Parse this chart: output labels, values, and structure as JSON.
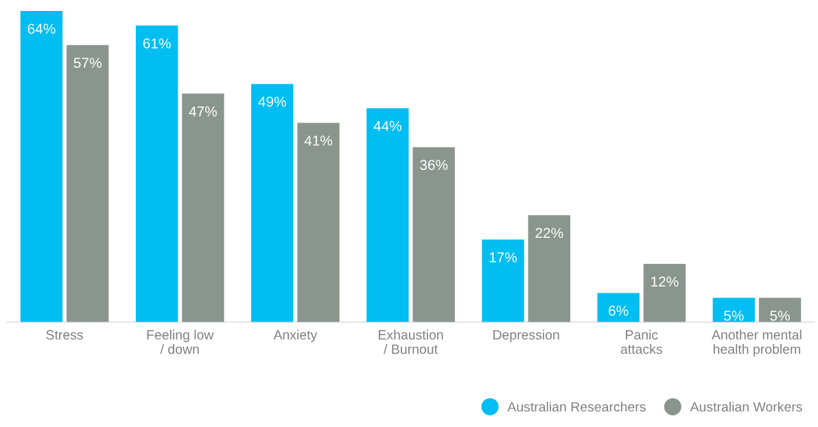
{
  "chart_data": {
    "type": "bar",
    "categories": [
      "Stress",
      "Feeling low\n/ down",
      "Anxiety",
      "Exhaustion\n/ Burnout",
      "Depression",
      "Panic\nattacks",
      "Another mental\nhealth problem"
    ],
    "series": [
      {
        "name": "Australian Researchers",
        "color": "#00bdf2",
        "values": [
          64,
          61,
          49,
          44,
          17,
          6,
          5
        ],
        "value_labels": [
          "64%",
          "61%",
          "49%",
          "44%",
          "17%",
          "6%",
          "5%"
        ]
      },
      {
        "name": "Australian Workers",
        "color": "#8a958e",
        "values": [
          57,
          47,
          41,
          36,
          22,
          12,
          5
        ],
        "value_labels": [
          "57%",
          "47%",
          "41%",
          "36%",
          "22%",
          "12%",
          "5%"
        ]
      }
    ],
    "tick_labels": "x",
    "grid": false,
    "legend": "bottom right"
  }
}
